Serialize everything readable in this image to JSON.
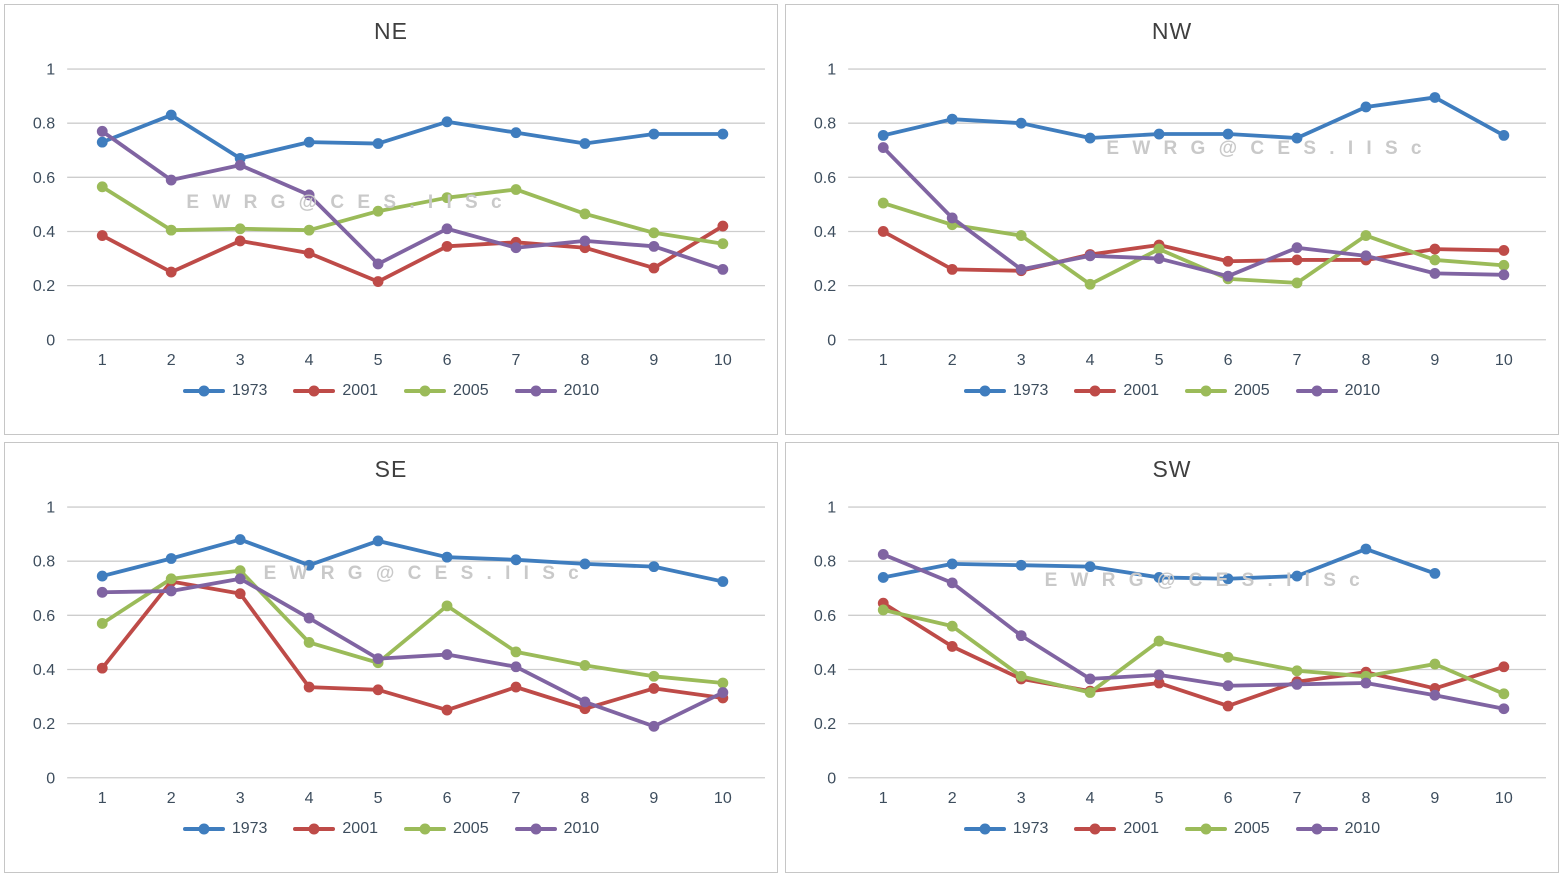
{
  "watermark": "E W R G @ C E S . I I S c",
  "colors": {
    "series_1973": "#3F7DBE",
    "series_2001": "#BE4B48",
    "series_2005": "#9BBB59",
    "series_2010": "#8064A2",
    "gridline": "#CDCDCD",
    "axis_text": "#3D4D5D",
    "title_text": "#3F3F3F",
    "watermark_text": "#C9C9C9"
  },
  "chart_data": [
    {
      "id": "ne",
      "type": "line",
      "title": "NE",
      "xlabel": "",
      "ylabel": "",
      "ylim": [
        0,
        1
      ],
      "grid": true,
      "legend_position": "bottom",
      "x_labels": [
        "1",
        "2",
        "3",
        "4",
        "5",
        "6",
        "7",
        "8",
        "9",
        "10"
      ],
      "y_tick_labels": [
        "1",
        "0.8",
        "0.6",
        "0.4",
        "0.2",
        "0"
      ],
      "series": [
        {
          "name": "1973",
          "color": "#3F7DBE",
          "values": [
            0.73,
            0.83,
            0.67,
            0.73,
            0.725,
            0.805,
            0.765,
            0.725,
            0.76,
            0.76
          ]
        },
        {
          "name": "2001",
          "color": "#BE4B48",
          "values": [
            0.385,
            0.25,
            0.365,
            0.32,
            0.215,
            0.345,
            0.36,
            0.34,
            0.265,
            0.42
          ]
        },
        {
          "name": "2005",
          "color": "#9BBB59",
          "values": [
            0.565,
            0.405,
            0.41,
            0.405,
            0.475,
            0.525,
            0.555,
            0.465,
            0.395,
            0.355
          ]
        },
        {
          "name": "2010",
          "color": "#8064A2",
          "values": [
            0.77,
            0.59,
            0.645,
            0.535,
            0.28,
            0.41,
            0.34,
            0.365,
            0.345,
            0.26
          ]
        }
      ]
    },
    {
      "id": "nw",
      "type": "line",
      "title": "NW",
      "xlabel": "",
      "ylabel": "",
      "ylim": [
        0,
        1
      ],
      "grid": true,
      "legend_position": "bottom",
      "x_labels": [
        "1",
        "2",
        "3",
        "4",
        "5",
        "6",
        "7",
        "8",
        "9",
        "10"
      ],
      "y_tick_labels": [
        "1",
        "0.8",
        "0.6",
        "0.4",
        "0.2",
        "0"
      ],
      "series": [
        {
          "name": "1973",
          "color": "#3F7DBE",
          "values": [
            0.755,
            0.815,
            0.8,
            0.745,
            0.76,
            0.76,
            0.745,
            0.86,
            0.895,
            0.755
          ]
        },
        {
          "name": "2001",
          "color": "#BE4B48",
          "values": [
            0.4,
            0.26,
            0.255,
            0.315,
            0.35,
            0.29,
            0.295,
            0.295,
            0.335,
            0.33
          ]
        },
        {
          "name": "2005",
          "color": "#9BBB59",
          "values": [
            0.505,
            0.425,
            0.385,
            0.205,
            0.335,
            0.225,
            0.21,
            0.385,
            0.295,
            0.275
          ]
        },
        {
          "name": "2010",
          "color": "#8064A2",
          "values": [
            0.71,
            0.45,
            0.26,
            0.31,
            0.3,
            0.235,
            0.34,
            0.31,
            0.245,
            0.24
          ]
        }
      ]
    },
    {
      "id": "se",
      "type": "line",
      "title": "SE",
      "xlabel": "",
      "ylabel": "",
      "ylim": [
        0,
        1
      ],
      "grid": true,
      "legend_position": "bottom",
      "x_labels": [
        "1",
        "2",
        "3",
        "4",
        "5",
        "6",
        "7",
        "8",
        "9",
        "10"
      ],
      "y_tick_labels": [
        "1",
        "0.8",
        "0.6",
        "0.4",
        "0.2",
        "0"
      ],
      "series": [
        {
          "name": "1973",
          "color": "#3F7DBE",
          "values": [
            0.745,
            0.81,
            0.88,
            0.785,
            0.875,
            0.815,
            0.805,
            0.79,
            0.78,
            0.725
          ]
        },
        {
          "name": "2001",
          "color": "#BE4B48",
          "values": [
            0.405,
            0.725,
            0.68,
            0.335,
            0.325,
            0.25,
            0.335,
            0.255,
            0.33,
            0.295
          ]
        },
        {
          "name": "2005",
          "color": "#9BBB59",
          "values": [
            0.57,
            0.735,
            0.765,
            0.5,
            0.425,
            0.635,
            0.465,
            0.415,
            0.375,
            0.35
          ]
        },
        {
          "name": "2010",
          "color": "#8064A2",
          "values": [
            0.685,
            0.69,
            0.735,
            0.59,
            0.44,
            0.455,
            0.41,
            0.28,
            0.19,
            0.315
          ]
        }
      ]
    },
    {
      "id": "sw",
      "type": "line",
      "title": "SW",
      "xlabel": "",
      "ylabel": "",
      "ylim": [
        0,
        1
      ],
      "grid": true,
      "legend_position": "bottom",
      "x_labels": [
        "1",
        "2",
        "3",
        "4",
        "5",
        "6",
        "7",
        "8",
        "9",
        "10"
      ],
      "y_tick_labels": [
        "1",
        "0.8",
        "0.6",
        "0.4",
        "0.2",
        "0"
      ],
      "series": [
        {
          "name": "1973",
          "color": "#3F7DBE",
          "values": [
            0.74,
            0.79,
            0.785,
            0.78,
            0.74,
            0.735,
            0.745,
            0.845,
            0.755,
            null
          ]
        },
        {
          "name": "2001",
          "color": "#BE4B48",
          "values": [
            0.645,
            0.485,
            0.365,
            0.32,
            0.35,
            0.265,
            0.355,
            0.39,
            0.33,
            0.41
          ]
        },
        {
          "name": "2005",
          "color": "#9BBB59",
          "values": [
            0.62,
            0.56,
            0.375,
            0.315,
            0.505,
            0.445,
            0.395,
            0.375,
            0.42,
            0.31
          ]
        },
        {
          "name": "2010",
          "color": "#8064A2",
          "values": [
            0.825,
            0.72,
            0.525,
            0.365,
            0.38,
            0.34,
            0.345,
            0.35,
            0.305,
            0.255
          ]
        }
      ]
    }
  ]
}
